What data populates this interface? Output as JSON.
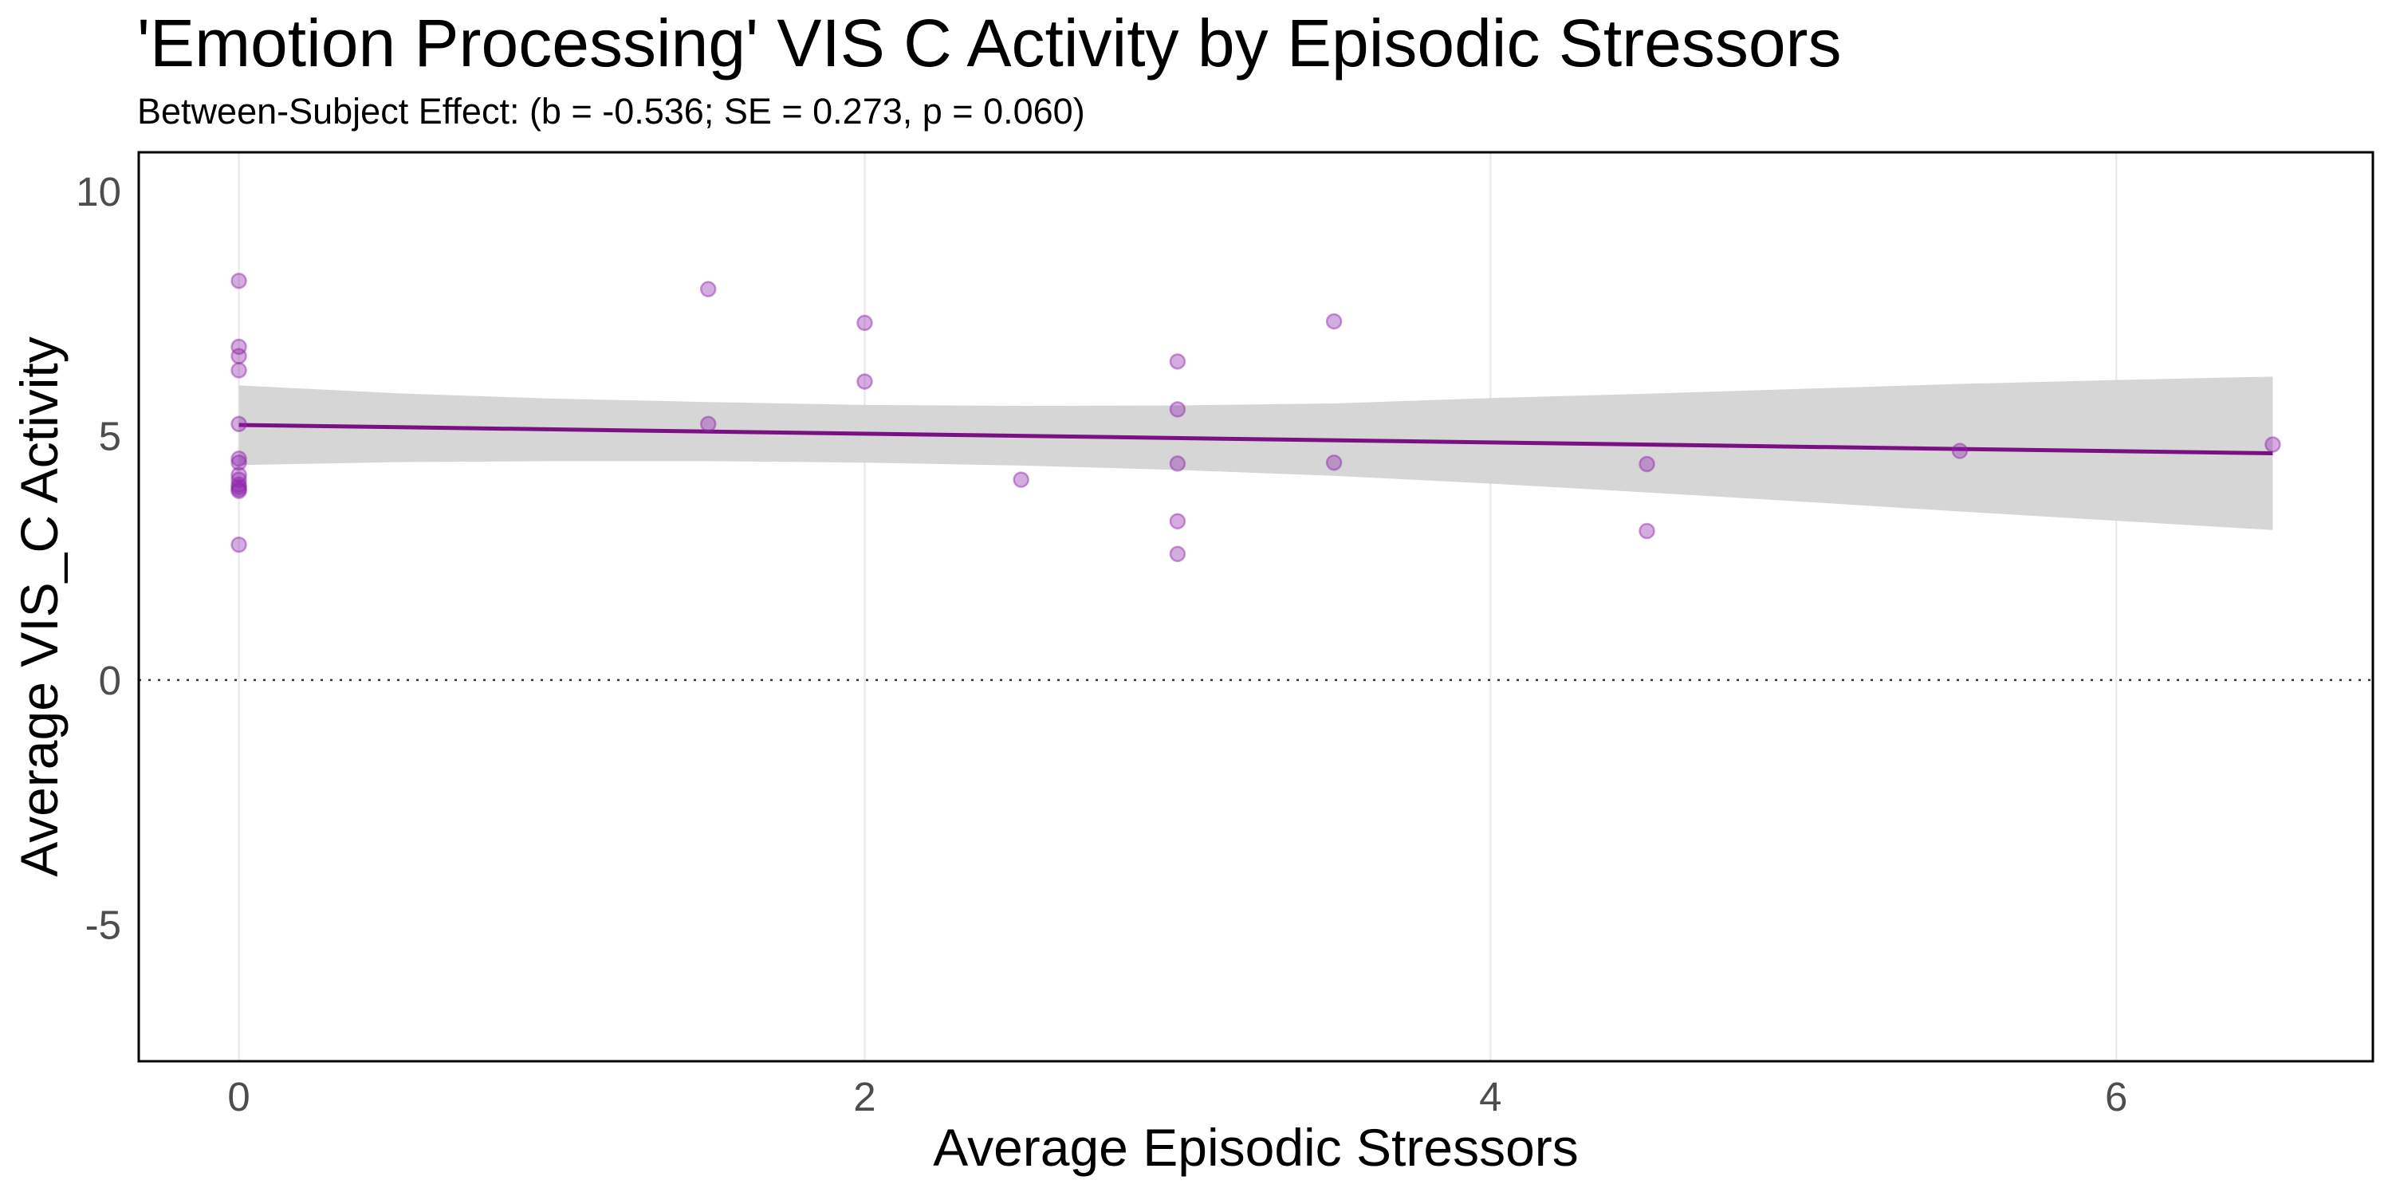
{
  "title": "'Emotion Processing' VIS C Activity by Episodic Stressors",
  "subtitle": "Between-Subject Effect: (b = -0.536; SE = 0.273, p = 0.060)",
  "colors": {
    "point": "#8e24aa",
    "line": "#7a1083",
    "ci_band": "#d6d6d6",
    "grid": "#ebebeb",
    "reference_line": "#333333"
  },
  "chart_data": {
    "type": "scatter",
    "title": "'Emotion Processing' VIS C Activity by Episodic Stressors",
    "subtitle": "Between-Subject Effect: (b = -0.536; SE = 0.273, p = 0.060)",
    "xlabel": "Average Episodic Stressors",
    "ylabel": "Average VIS_C Activity",
    "xlim": [
      -0.32,
      6.82
    ],
    "ylim": [
      -7.8,
      10.8
    ],
    "x_ticks": [
      0,
      2,
      4,
      6
    ],
    "x_tick_labels": [
      "0",
      "2",
      "4",
      "6"
    ],
    "y_ticks": [
      -5,
      0,
      5,
      10
    ],
    "y_tick_labels": [
      "-5",
      "0",
      "5",
      "10"
    ],
    "grid": "vertical major lines only",
    "legend": "none",
    "reference_line": {
      "y": 0,
      "style": "dotted"
    },
    "points": [
      {
        "x": 0,
        "y": 8.17
      },
      {
        "x": 0,
        "y": 6.82
      },
      {
        "x": 0,
        "y": 6.63
      },
      {
        "x": 0,
        "y": 6.34
      },
      {
        "x": 0,
        "y": 5.24
      },
      {
        "x": 0,
        "y": 4.53
      },
      {
        "x": 0,
        "y": 4.45
      },
      {
        "x": 0,
        "y": 4.2
      },
      {
        "x": 0,
        "y": 4.1
      },
      {
        "x": 0,
        "y": 4.0
      },
      {
        "x": 0,
        "y": 3.95
      },
      {
        "x": 0,
        "y": 3.9
      },
      {
        "x": 0,
        "y": 3.87
      },
      {
        "x": 0,
        "y": 2.77
      },
      {
        "x": 1.5,
        "y": 8.0
      },
      {
        "x": 1.5,
        "y": 5.24
      },
      {
        "x": 2.0,
        "y": 7.31
      },
      {
        "x": 2.0,
        "y": 6.11
      },
      {
        "x": 2.5,
        "y": 4.1
      },
      {
        "x": 3.0,
        "y": 6.52
      },
      {
        "x": 3.0,
        "y": 5.54
      },
      {
        "x": 3.0,
        "y": 4.43
      },
      {
        "x": 3.0,
        "y": 3.25
      },
      {
        "x": 3.0,
        "y": 2.58
      },
      {
        "x": 3.5,
        "y": 7.34
      },
      {
        "x": 3.5,
        "y": 4.45
      },
      {
        "x": 4.5,
        "y": 4.42
      },
      {
        "x": 4.5,
        "y": 3.05
      },
      {
        "x": 5.5,
        "y": 4.69
      },
      {
        "x": 6.5,
        "y": 4.82
      }
    ],
    "fit_line": {
      "x": [
        0,
        6.5
      ],
      "y": [
        5.22,
        4.64
      ]
    },
    "ci_band": {
      "x": [
        0,
        0.5,
        1.0,
        1.5,
        2.0,
        2.5,
        3.0,
        3.5,
        4.0,
        4.5,
        5.0,
        5.5,
        6.0,
        6.5
      ],
      "upper": [
        6.03,
        5.87,
        5.76,
        5.69,
        5.63,
        5.61,
        5.62,
        5.66,
        5.77,
        5.86,
        5.96,
        6.06,
        6.14,
        6.21
      ],
      "lower": [
        4.4,
        4.46,
        4.48,
        4.48,
        4.45,
        4.39,
        4.3,
        4.18,
        4.02,
        3.84,
        3.65,
        3.45,
        3.26,
        3.07
      ]
    }
  }
}
